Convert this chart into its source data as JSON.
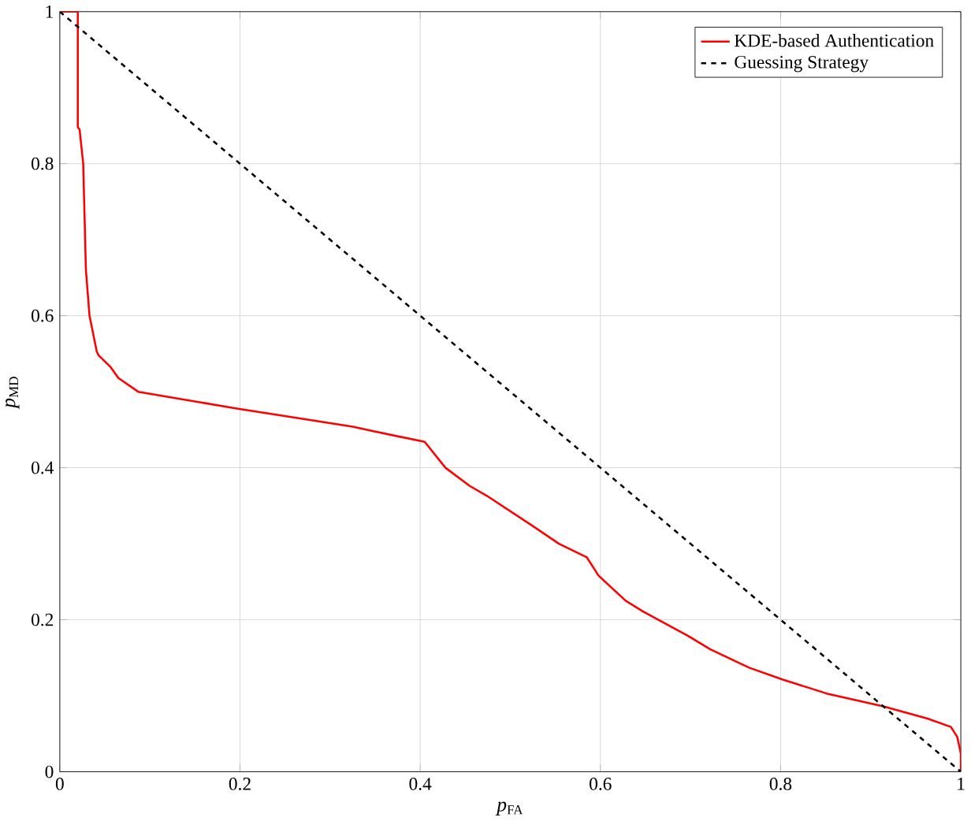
{
  "chart_data": {
    "type": "line",
    "xlabel": "*p*$_{FA}$",
    "ylabel": "*p*$_{MD}$",
    "xlim": [
      0,
      1
    ],
    "ylim": [
      0,
      1
    ],
    "xticks": [
      0,
      0.2,
      0.4,
      0.6,
      0.8,
      1
    ],
    "yticks": [
      0,
      0.2,
      0.4,
      0.6,
      0.8,
      1
    ],
    "grid": true,
    "legend": "top right",
    "series": [
      {
        "name": "KDE-based Authentication",
        "color": "#ff0000",
        "line_style": "solid",
        "x": [
          0,
          0.02,
          0.02,
          0.022,
          0.026,
          0.029,
          0.033,
          0.041,
          0.043,
          0.056,
          0.065,
          0.087,
          0.195,
          0.325,
          0.344,
          0.405,
          0.428,
          0.455,
          0.474,
          0.524,
          0.554,
          0.585,
          0.598,
          0.628,
          0.647,
          0.697,
          0.722,
          0.765,
          0.803,
          0.851,
          0.914,
          0.963,
          0.989,
          0.996,
          1.0,
          1.0
        ],
        "values": [
          1,
          1,
          0.848,
          0.845,
          0.8,
          0.66,
          0.6,
          0.553,
          0.548,
          0.533,
          0.518,
          0.5,
          0.478,
          0.454,
          0.449,
          0.434,
          0.4,
          0.376,
          0.363,
          0.324,
          0.3,
          0.282,
          0.258,
          0.225,
          0.211,
          0.179,
          0.161,
          0.137,
          0.121,
          0.103,
          0.086,
          0.07,
          0.059,
          0.046,
          0.024,
          0
        ]
      },
      {
        "name": "Guessing Strategy",
        "color": "#000000",
        "line_style": "dashed",
        "x": [
          0,
          1
        ],
        "values": [
          1,
          0
        ]
      }
    ]
  }
}
